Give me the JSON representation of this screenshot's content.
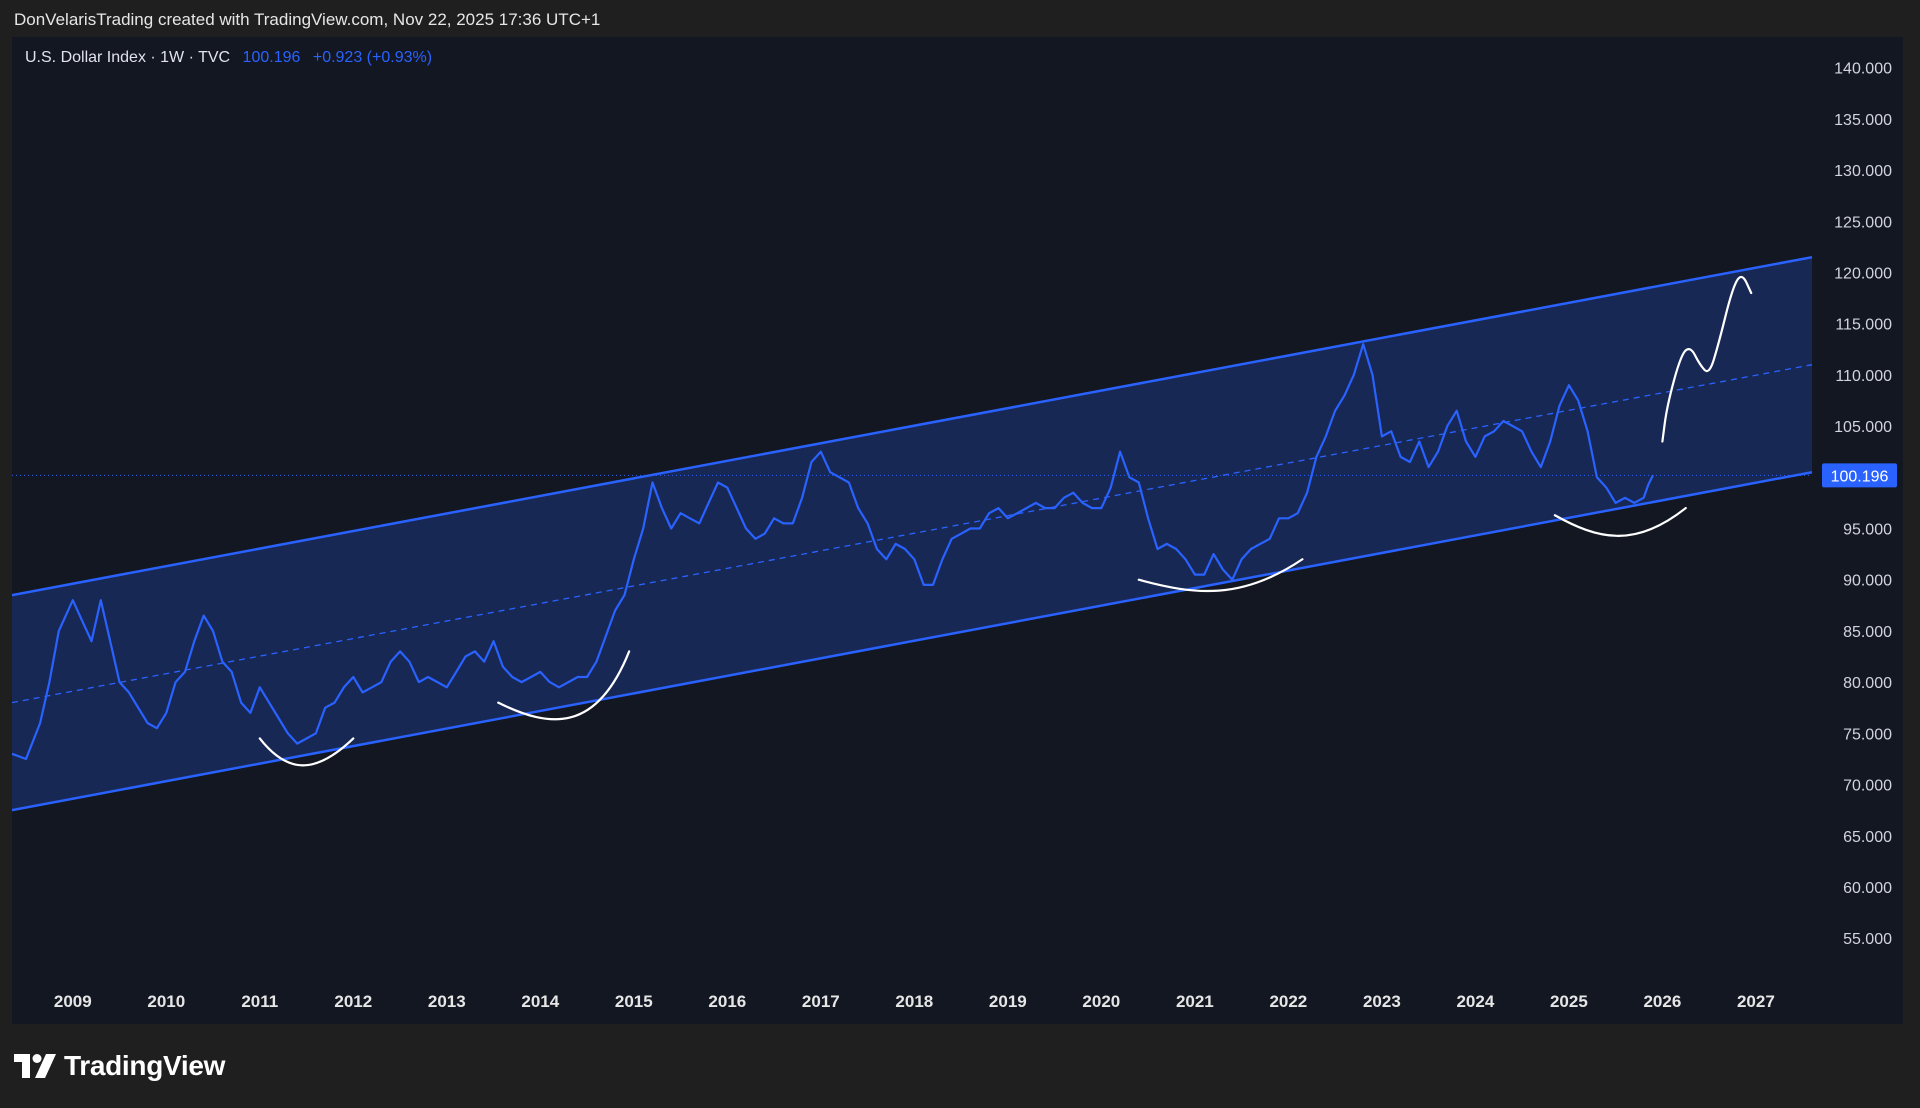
{
  "header": {
    "attribution": "DonVelarisTrading created with TradingView.com, Nov 22, 2025 17:36 UTC+1"
  },
  "legend": {
    "symbol": "U.S. Dollar Index · 1W · TVC",
    "price": "100.196",
    "change": "+0.923 (+0.93%)"
  },
  "brand": {
    "logo_icon": "tradingview-logo-icon",
    "name": "TradingView"
  },
  "colors": {
    "background": "#131722",
    "line": "#2962ff",
    "channel_fill": "#1a2b5e",
    "drawing": "#ffffff",
    "text": "#d1d4dc"
  },
  "chart_data": {
    "type": "line",
    "title": "U.S. Dollar Index · 1W · TVC",
    "x_range": [
      2008.35,
      2027.6
    ],
    "ylim": [
      51.5,
      143
    ],
    "y_ticks": [
      "140.000",
      "135.000",
      "130.000",
      "125.000",
      "120.000",
      "115.000",
      "110.000",
      "105.000",
      "100.000",
      "95.000",
      "90.000",
      "85.000",
      "80.000",
      "75.000",
      "70.000",
      "65.000",
      "60.000",
      "55.000"
    ],
    "x_ticks": [
      "2009",
      "2010",
      "2011",
      "2012",
      "2013",
      "2014",
      "2015",
      "2016",
      "2017",
      "2018",
      "2019",
      "2020",
      "2021",
      "2022",
      "2023",
      "2024",
      "2025",
      "2026",
      "2027"
    ],
    "last_price": 100.196,
    "last_price_label": "100.196",
    "series": [
      {
        "points": [
          [
            2008.35,
            73
          ],
          [
            2008.5,
            72.5
          ],
          [
            2008.65,
            76
          ],
          [
            2008.75,
            80
          ],
          [
            2008.85,
            85
          ],
          [
            2009.0,
            88
          ],
          [
            2009.1,
            86
          ],
          [
            2009.2,
            84
          ],
          [
            2009.3,
            88
          ],
          [
            2009.4,
            84
          ],
          [
            2009.5,
            80
          ],
          [
            2009.6,
            79
          ],
          [
            2009.7,
            77.5
          ],
          [
            2009.8,
            76
          ],
          [
            2009.9,
            75.5
          ],
          [
            2010.0,
            77
          ],
          [
            2010.1,
            80
          ],
          [
            2010.2,
            81
          ],
          [
            2010.3,
            84
          ],
          [
            2010.4,
            86.5
          ],
          [
            2010.5,
            85
          ],
          [
            2010.6,
            82
          ],
          [
            2010.7,
            81
          ],
          [
            2010.8,
            78
          ],
          [
            2010.9,
            77
          ],
          [
            2011.0,
            79.5
          ],
          [
            2011.1,
            78
          ],
          [
            2011.2,
            76.5
          ],
          [
            2011.3,
            75
          ],
          [
            2011.4,
            74
          ],
          [
            2011.5,
            74.5
          ],
          [
            2011.6,
            75
          ],
          [
            2011.7,
            77.5
          ],
          [
            2011.8,
            78
          ],
          [
            2011.9,
            79.5
          ],
          [
            2012.0,
            80.5
          ],
          [
            2012.1,
            79
          ],
          [
            2012.2,
            79.5
          ],
          [
            2012.3,
            80
          ],
          [
            2012.4,
            82
          ],
          [
            2012.5,
            83
          ],
          [
            2012.6,
            82
          ],
          [
            2012.7,
            80
          ],
          [
            2012.8,
            80.5
          ],
          [
            2012.9,
            80
          ],
          [
            2013.0,
            79.5
          ],
          [
            2013.1,
            81
          ],
          [
            2013.2,
            82.5
          ],
          [
            2013.3,
            83
          ],
          [
            2013.4,
            82
          ],
          [
            2013.5,
            84
          ],
          [
            2013.6,
            81.5
          ],
          [
            2013.7,
            80.5
          ],
          [
            2013.8,
            80
          ],
          [
            2013.9,
            80.5
          ],
          [
            2014.0,
            81
          ],
          [
            2014.1,
            80
          ],
          [
            2014.2,
            79.5
          ],
          [
            2014.3,
            80
          ],
          [
            2014.4,
            80.5
          ],
          [
            2014.5,
            80.5
          ],
          [
            2014.6,
            82
          ],
          [
            2014.7,
            84.5
          ],
          [
            2014.8,
            87
          ],
          [
            2014.9,
            88.5
          ],
          [
            2015.0,
            92
          ],
          [
            2015.1,
            95
          ],
          [
            2015.2,
            99.5
          ],
          [
            2015.3,
            97
          ],
          [
            2015.4,
            95
          ],
          [
            2015.5,
            96.5
          ],
          [
            2015.6,
            96
          ],
          [
            2015.7,
            95.5
          ],
          [
            2015.8,
            97.5
          ],
          [
            2015.9,
            99.5
          ],
          [
            2016.0,
            99
          ],
          [
            2016.1,
            97
          ],
          [
            2016.2,
            95
          ],
          [
            2016.3,
            94
          ],
          [
            2016.4,
            94.5
          ],
          [
            2016.5,
            96
          ],
          [
            2016.6,
            95.5
          ],
          [
            2016.7,
            95.5
          ],
          [
            2016.8,
            98
          ],
          [
            2016.9,
            101.5
          ],
          [
            2017.0,
            102.5
          ],
          [
            2017.1,
            100.5
          ],
          [
            2017.2,
            100
          ],
          [
            2017.3,
            99.5
          ],
          [
            2017.4,
            97
          ],
          [
            2017.5,
            95.5
          ],
          [
            2017.6,
            93
          ],
          [
            2017.7,
            92
          ],
          [
            2017.8,
            93.5
          ],
          [
            2017.9,
            93
          ],
          [
            2018.0,
            92
          ],
          [
            2018.1,
            89.5
          ],
          [
            2018.2,
            89.5
          ],
          [
            2018.3,
            92
          ],
          [
            2018.4,
            94
          ],
          [
            2018.5,
            94.5
          ],
          [
            2018.6,
            95
          ],
          [
            2018.7,
            95
          ],
          [
            2018.8,
            96.5
          ],
          [
            2018.9,
            97
          ],
          [
            2019.0,
            96
          ],
          [
            2019.1,
            96.5
          ],
          [
            2019.2,
            97
          ],
          [
            2019.3,
            97.5
          ],
          [
            2019.4,
            97
          ],
          [
            2019.5,
            97
          ],
          [
            2019.6,
            98
          ],
          [
            2019.7,
            98.5
          ],
          [
            2019.8,
            97.5
          ],
          [
            2019.9,
            97
          ],
          [
            2020.0,
            97
          ],
          [
            2020.1,
            99
          ],
          [
            2020.2,
            102.5
          ],
          [
            2020.3,
            100
          ],
          [
            2020.4,
            99.5
          ],
          [
            2020.5,
            96
          ],
          [
            2020.6,
            93
          ],
          [
            2020.7,
            93.5
          ],
          [
            2020.8,
            93
          ],
          [
            2020.9,
            92
          ],
          [
            2021.0,
            90.5
          ],
          [
            2021.1,
            90.5
          ],
          [
            2021.2,
            92.5
          ],
          [
            2021.3,
            91
          ],
          [
            2021.4,
            90
          ],
          [
            2021.5,
            92
          ],
          [
            2021.6,
            93
          ],
          [
            2021.7,
            93.5
          ],
          [
            2021.8,
            94
          ],
          [
            2021.9,
            96
          ],
          [
            2022.0,
            96
          ],
          [
            2022.1,
            96.5
          ],
          [
            2022.2,
            98.5
          ],
          [
            2022.3,
            102
          ],
          [
            2022.4,
            104
          ],
          [
            2022.5,
            106.5
          ],
          [
            2022.6,
            108
          ],
          [
            2022.7,
            110
          ],
          [
            2022.8,
            113
          ],
          [
            2022.9,
            110
          ],
          [
            2023.0,
            104
          ],
          [
            2023.1,
            104.5
          ],
          [
            2023.2,
            102
          ],
          [
            2023.3,
            101.5
          ],
          [
            2023.4,
            103.5
          ],
          [
            2023.5,
            101
          ],
          [
            2023.6,
            102.5
          ],
          [
            2023.7,
            105
          ],
          [
            2023.8,
            106.5
          ],
          [
            2023.9,
            103.5
          ],
          [
            2024.0,
            102
          ],
          [
            2024.1,
            104
          ],
          [
            2024.2,
            104.5
          ],
          [
            2024.3,
            105.5
          ],
          [
            2024.4,
            105
          ],
          [
            2024.5,
            104.5
          ],
          [
            2024.6,
            102.5
          ],
          [
            2024.7,
            101
          ],
          [
            2024.8,
            103.5
          ],
          [
            2024.9,
            107
          ],
          [
            2025.0,
            109
          ],
          [
            2025.1,
            107.5
          ],
          [
            2025.2,
            104.5
          ],
          [
            2025.3,
            100
          ],
          [
            2025.4,
            99
          ],
          [
            2025.5,
            97.5
          ],
          [
            2025.6,
            98
          ],
          [
            2025.7,
            97.5
          ],
          [
            2025.8,
            98
          ],
          [
            2025.85,
            99.3
          ],
          [
            2025.9,
            100.2
          ]
        ]
      }
    ],
    "channel": {
      "start_x": 2008.35,
      "end_x": 2027.6,
      "upper": [
        88.5,
        121.5
      ],
      "middle": [
        78,
        111
      ],
      "lower": [
        67.5,
        100.5
      ]
    },
    "drawings": {
      "curves": [
        [
          [
            2011.0,
            74.5
          ],
          [
            2011.3,
            71
          ],
          [
            2011.6,
            71
          ],
          [
            2012.0,
            74.5
          ]
        ],
        [
          [
            2013.55,
            78
          ],
          [
            2014.1,
            75.5
          ],
          [
            2014.6,
            75
          ],
          [
            2014.95,
            83
          ]
        ],
        [
          [
            2020.4,
            90
          ],
          [
            2021.0,
            88.5
          ],
          [
            2021.5,
            88
          ],
          [
            2022.15,
            92
          ]
        ],
        [
          [
            2024.85,
            96.3
          ],
          [
            2025.3,
            94
          ],
          [
            2025.7,
            93
          ],
          [
            2026.25,
            97
          ]
        ]
      ],
      "projection": [
        [
          2026.0,
          103.5
        ],
        [
          2026.05,
          107
        ],
        [
          2026.2,
          112
        ],
        [
          2026.3,
          112.8
        ],
        [
          2026.4,
          111
        ],
        [
          2026.5,
          110
        ],
        [
          2026.6,
          113
        ],
        [
          2026.75,
          118.5
        ],
        [
          2026.85,
          120
        ],
        [
          2026.95,
          118
        ]
      ]
    }
  }
}
